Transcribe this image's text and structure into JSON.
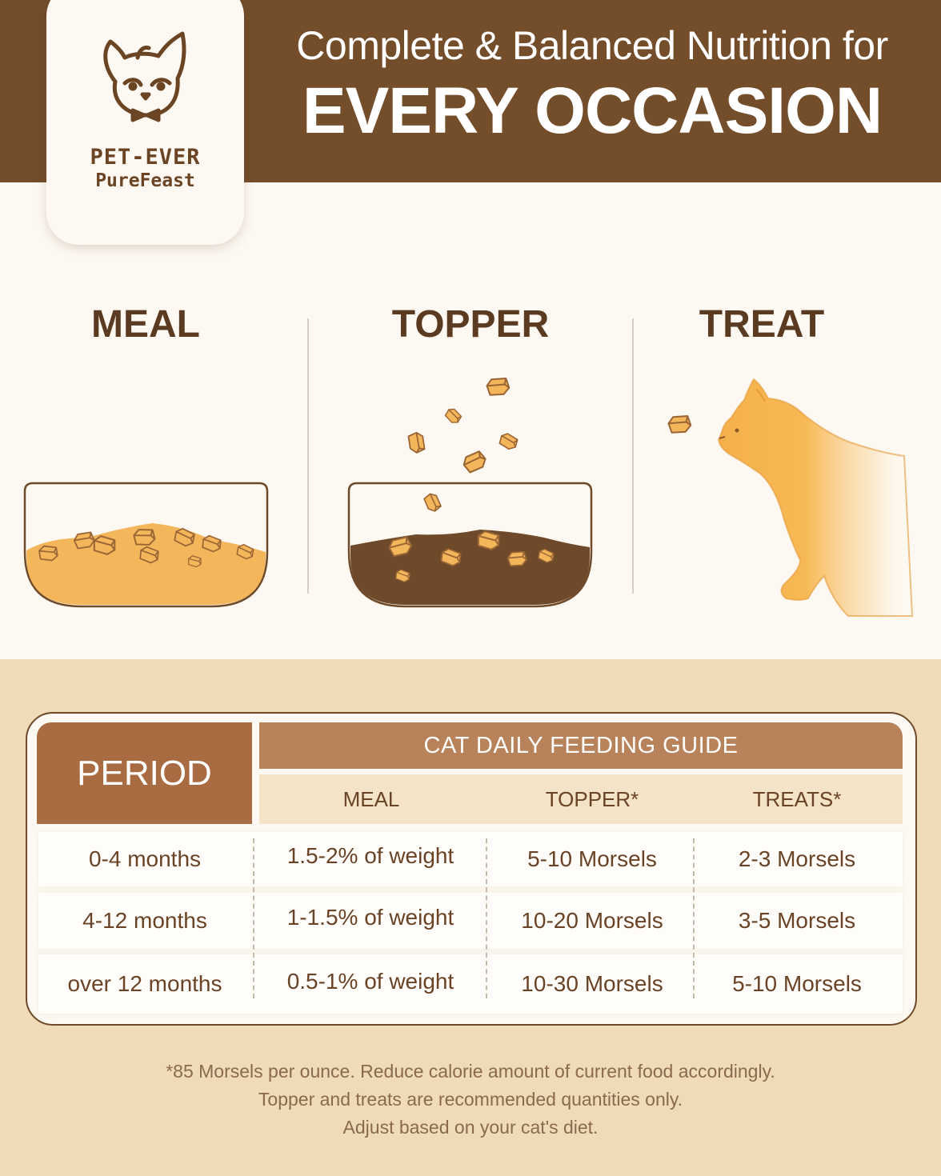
{
  "header": {
    "headline_line1": "Complete & Balanced Nutrition for",
    "headline_line2": "EVERY OCCASION",
    "brand_name": "PET-EVER",
    "brand_sub": "PureFeast"
  },
  "columns": [
    {
      "title": "MEAL"
    },
    {
      "title": "TOPPER"
    },
    {
      "title": "TREAT"
    }
  ],
  "table": {
    "period_header": "PERIOD",
    "guide_header": "CAT DAILY FEEDING GUIDE",
    "sub_headers": [
      "MEAL",
      "TOPPER*",
      "TREATS*"
    ],
    "rows": [
      {
        "period": "0-4 months",
        "meal": "1.5-2% of weight",
        "topper": "5-10 Morsels",
        "treats": "2-3 Morsels"
      },
      {
        "period": "4-12 months",
        "meal": "1-1.5% of weight",
        "topper": "10-20 Morsels",
        "treats": "3-5 Morsels"
      },
      {
        "period": "over 12 months",
        "meal": "0.5-1% of weight",
        "topper": "10-30 Morsels",
        "treats": "5-10 Morsels"
      }
    ]
  },
  "footnotes": [
    "*85 Morsels per ounce. Reduce calorie amount of current food accordingly.",
    "Topper and treats are recommended quantities only.",
    "Adjust based on your cat's diet."
  ],
  "colors": {
    "brand_brown": "#744d2b",
    "period_header": "#a96b41",
    "guide_header": "#b8825a",
    "morsel": "#f4b65a",
    "wet_food": "#6e4a2a"
  }
}
